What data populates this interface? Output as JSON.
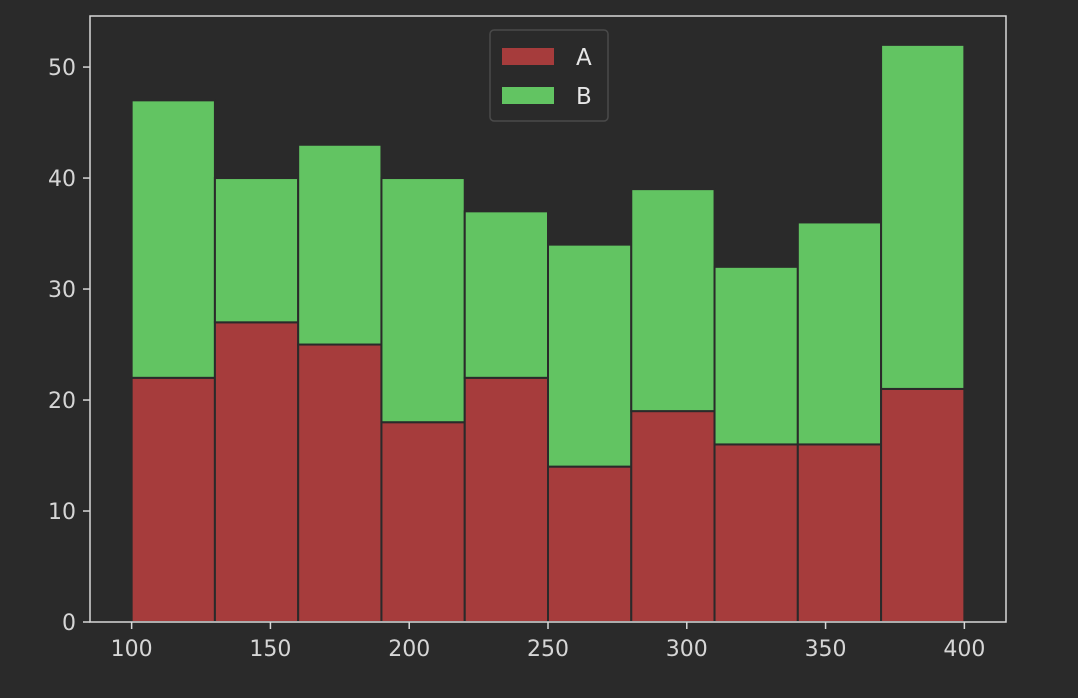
{
  "chart_data": {
    "type": "bar",
    "stacked": true,
    "histogram": true,
    "bin_edges": [
      100,
      130,
      160,
      190,
      220,
      250,
      280,
      310,
      340,
      370,
      400
    ],
    "series": [
      {
        "name": "A",
        "color": "#a63c3c",
        "values": [
          22,
          27,
          25,
          18,
          22,
          14,
          19,
          16,
          16,
          21
        ]
      },
      {
        "name": "B",
        "color": "#62c462",
        "values": [
          25,
          13,
          18,
          22,
          15,
          20,
          20,
          16,
          20,
          31
        ]
      }
    ],
    "xlim": [
      85,
      415
    ],
    "ylim": [
      0,
      54.6
    ],
    "xticks": [
      100,
      150,
      200,
      250,
      300,
      350,
      400
    ],
    "yticks": [
      0,
      10,
      20,
      30,
      40,
      50
    ],
    "title": "",
    "xlabel": "",
    "ylabel": "",
    "grid": false,
    "legend_position": "top-center",
    "colors": {
      "background": "#2a2a2a",
      "axes": "#d8d8d8",
      "bar_edge": "#2a2a2a",
      "text": "#d6d6d6"
    }
  }
}
